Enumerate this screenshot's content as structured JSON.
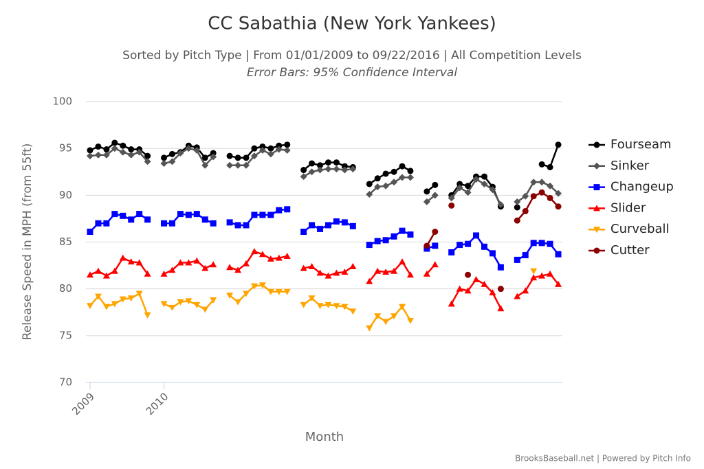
{
  "chart_data": {
    "type": "line",
    "title": "CC Sabathia (New York Yankees)",
    "subtitle": "Sorted by Pitch Type | From 01/01/2009 to 09/22/2016 | All Competition Levels",
    "subtitle2": "Error Bars: 95% Confidence Interval",
    "x_label": "Month",
    "y_label": "Release Speed in MPH (from 55ft)",
    "credit": "BrooksBaseball.net | Powered by Pitch Info",
    "categories": [
      "2009",
      null,
      null,
      null,
      null,
      null,
      null,
      null,
      null,
      "2010",
      null,
      null,
      null,
      null,
      null,
      null,
      null,
      null,
      null,
      null,
      null,
      null,
      null,
      null,
      null,
      null,
      null,
      null,
      null,
      null,
      null,
      null,
      null,
      null,
      null,
      null,
      null,
      null,
      null,
      null,
      null,
      null,
      null,
      null,
      null,
      null,
      null,
      null,
      null,
      null,
      null,
      null,
      null,
      null,
      null,
      null,
      null,
      null
    ],
    "ylim": [
      70,
      100
    ],
    "yticks": [
      70,
      75,
      80,
      85,
      90,
      95,
      100
    ],
    "grid": true,
    "legend": "right",
    "series": [
      {
        "name": "Fourseam",
        "color": "#000000",
        "marker": "circle",
        "values": [
          94.8,
          95.2,
          94.9,
          95.6,
          95.3,
          94.9,
          94.9,
          94.2,
          null,
          94.0,
          94.4,
          94.6,
          95.3,
          95.1,
          94.0,
          94.5,
          null,
          94.2,
          94.0,
          94.0,
          95.0,
          95.2,
          95.0,
          95.3,
          95.4,
          null,
          92.7,
          93.4,
          93.2,
          93.5,
          93.5,
          93.1,
          93.0,
          null,
          91.2,
          91.8,
          92.3,
          92.5,
          93.1,
          92.6,
          null,
          90.4,
          91.1,
          null,
          90.0,
          91.2,
          91.0,
          92.0,
          92.0,
          90.9,
          88.8,
          null,
          88.7,
          null,
          null,
          93.3,
          93.0,
          95.4
        ]
      },
      {
        "name": "Sinker",
        "color": "#555555",
        "marker": "diamond",
        "values": [
          94.2,
          94.3,
          94.3,
          95.0,
          94.6,
          94.3,
          94.6,
          93.6,
          null,
          93.4,
          93.6,
          94.5,
          95.0,
          94.8,
          93.2,
          94.1,
          null,
          93.2,
          93.2,
          93.2,
          94.2,
          94.8,
          94.4,
          94.9,
          94.8,
          null,
          92.0,
          92.5,
          92.7,
          92.8,
          92.8,
          92.7,
          92.8,
          null,
          90.1,
          90.9,
          91.0,
          91.4,
          91.9,
          91.9,
          null,
          89.3,
          90.0,
          null,
          89.7,
          90.8,
          90.3,
          91.7,
          91.2,
          90.6,
          89.0,
          null,
          89.3,
          89.9,
          91.4,
          91.4,
          91.0,
          90.2
        ]
      },
      {
        "name": "Changeup",
        "color": "#0000ff",
        "marker": "square",
        "values": [
          86.1,
          87.0,
          87.0,
          88.0,
          87.8,
          87.4,
          88.0,
          87.4,
          null,
          87.0,
          87.0,
          88.0,
          87.9,
          88.0,
          87.4,
          87.0,
          null,
          87.1,
          86.8,
          86.8,
          87.9,
          87.9,
          87.9,
          88.4,
          88.5,
          null,
          86.1,
          86.8,
          86.4,
          86.8,
          87.2,
          87.1,
          86.7,
          null,
          84.7,
          85.1,
          85.2,
          85.6,
          86.2,
          85.8,
          null,
          84.3,
          84.6,
          null,
          83.9,
          84.7,
          84.8,
          85.7,
          84.5,
          83.8,
          82.3,
          null,
          83.1,
          83.6,
          84.9,
          84.9,
          84.8,
          83.7
        ]
      },
      {
        "name": "Slider",
        "color": "#ff0000",
        "marker": "triangle-up",
        "values": [
          81.5,
          81.9,
          81.4,
          81.9,
          83.3,
          82.9,
          82.8,
          81.6,
          null,
          81.6,
          82.0,
          82.8,
          82.8,
          83.0,
          82.2,
          82.6,
          null,
          82.3,
          82.0,
          82.7,
          84.0,
          83.7,
          83.2,
          83.3,
          83.5,
          null,
          82.2,
          82.4,
          81.7,
          81.4,
          81.7,
          81.8,
          82.4,
          null,
          80.8,
          81.9,
          81.8,
          81.9,
          82.9,
          81.5,
          null,
          81.6,
          82.6,
          null,
          78.4,
          80.0,
          79.8,
          81.0,
          80.5,
          79.6,
          77.9,
          null,
          79.2,
          79.8,
          81.2,
          81.4,
          81.6,
          80.5
        ]
      },
      {
        "name": "Curveball",
        "color": "#ffa500",
        "marker": "triangle-down",
        "values": [
          78.2,
          79.2,
          78.1,
          78.4,
          78.9,
          79.0,
          79.5,
          77.2,
          null,
          78.4,
          78.0,
          78.6,
          78.7,
          78.3,
          77.8,
          78.8,
          null,
          79.3,
          78.6,
          79.5,
          80.3,
          80.4,
          79.7,
          79.7,
          79.7,
          null,
          78.3,
          79.0,
          78.2,
          78.3,
          78.2,
          78.1,
          77.6,
          null,
          75.8,
          77.1,
          76.5,
          77.1,
          78.1,
          76.6,
          null,
          null,
          null,
          null,
          null,
          null,
          null,
          null,
          null,
          null,
          null,
          null,
          null,
          null,
          81.9,
          null,
          null,
          null
        ]
      },
      {
        "name": "Cutter",
        "color": "#8b0000",
        "marker": "circle",
        "values": [
          null,
          null,
          null,
          null,
          null,
          null,
          null,
          null,
          null,
          null,
          null,
          null,
          null,
          null,
          null,
          null,
          null,
          null,
          null,
          null,
          null,
          null,
          null,
          null,
          null,
          null,
          null,
          null,
          null,
          null,
          null,
          null,
          null,
          null,
          null,
          null,
          null,
          null,
          null,
          null,
          null,
          84.6,
          86.1,
          null,
          88.9,
          null,
          81.5,
          null,
          null,
          null,
          80.0,
          null,
          87.3,
          88.3,
          89.9,
          90.3,
          89.7,
          88.8
        ]
      }
    ]
  }
}
